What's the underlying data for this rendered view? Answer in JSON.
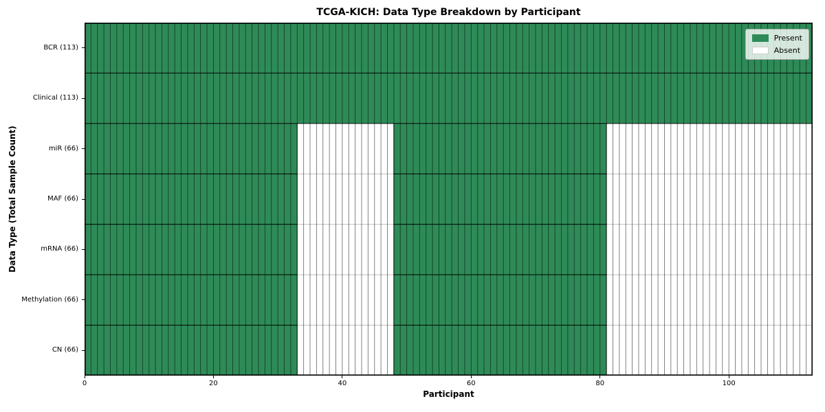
{
  "chart_data": {
    "type": "heatmap",
    "title": "TCGA-KICH: Data Type Breakdown by Participant",
    "xlabel": "Participant",
    "ylabel": "Data Type (Total Sample Count)",
    "n_participants": 113,
    "xlim": [
      0,
      113
    ],
    "x_ticks": [
      0,
      20,
      40,
      60,
      80,
      100
    ],
    "grid": "cell-borders",
    "rows": [
      {
        "label": "BCR (113)",
        "data_type": "BCR",
        "total_samples": 113,
        "present_ranges": [
          [
            0,
            113
          ]
        ]
      },
      {
        "label": "Clinical (113)",
        "data_type": "Clinical",
        "total_samples": 113,
        "present_ranges": [
          [
            0,
            113
          ]
        ]
      },
      {
        "label": "miR (66)",
        "data_type": "miR",
        "total_samples": 66,
        "present_ranges": [
          [
            0,
            33
          ],
          [
            48,
            81
          ]
        ]
      },
      {
        "label": "MAF (66)",
        "data_type": "MAF",
        "total_samples": 66,
        "present_ranges": [
          [
            0,
            33
          ],
          [
            48,
            81
          ]
        ]
      },
      {
        "label": "mRNA (66)",
        "data_type": "mRNA",
        "total_samples": 66,
        "present_ranges": [
          [
            0,
            33
          ],
          [
            48,
            81
          ]
        ]
      },
      {
        "label": "Methylation (66)",
        "data_type": "Methylation",
        "total_samples": 66,
        "present_ranges": [
          [
            0,
            33
          ],
          [
            48,
            81
          ]
        ]
      },
      {
        "label": "CN (66)",
        "data_type": "CN",
        "total_samples": 66,
        "present_ranges": [
          [
            0,
            33
          ],
          [
            48,
            81
          ]
        ]
      }
    ],
    "legend": {
      "position": "upper right",
      "entries": [
        {
          "label": "Present",
          "color": "#2e8b57"
        },
        {
          "label": "Absent",
          "color": "#ffffff"
        }
      ]
    },
    "colors": {
      "present": "#2e8b57",
      "absent": "#ffffff",
      "cell_border": "#000000",
      "row_divider_light": "#bdbdbd",
      "frame": "#000000"
    }
  }
}
